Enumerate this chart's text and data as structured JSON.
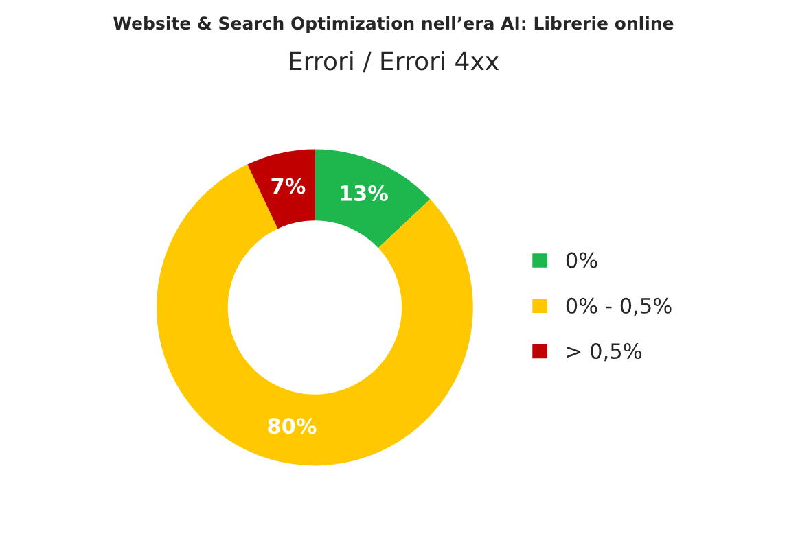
{
  "chart_data": {
    "type": "donut",
    "title": "Website & Search Optimization nell’era AI: Librerie online",
    "subtitle": "Errori / Errori 4xx",
    "categories": [
      "0%",
      "0% - 0,5%",
      "> 0,5%"
    ],
    "values": [
      13,
      80,
      7
    ],
    "value_labels": [
      "13%",
      "80%",
      "7%"
    ],
    "colors": [
      "#1db74e",
      "#ffc800",
      "#c00000"
    ],
    "legend": "right"
  }
}
